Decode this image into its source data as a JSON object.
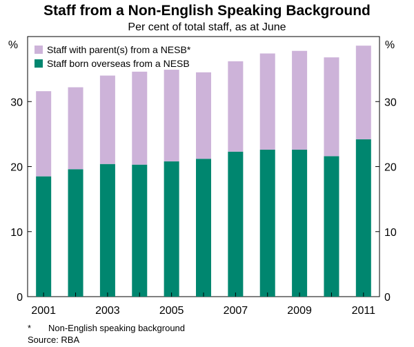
{
  "title": "Staff from a Non-English Speaking Background",
  "subtitle": "Per cent of total staff, as at June",
  "footnote_marker": "*",
  "footnote_text": "Non-English speaking background",
  "source": "Source: RBA",
  "colors": {
    "overseas": "#00866F",
    "parents": "#CDB3D9",
    "axis": "#000000"
  },
  "chart_data": {
    "type": "bar",
    "stacked": true,
    "categories": [
      "2001",
      "2002",
      "2003",
      "2004",
      "2005",
      "2006",
      "2007",
      "2008",
      "2009",
      "2010",
      "2011"
    ],
    "x_tick_labels": [
      "2001",
      "",
      "2003",
      "",
      "2005",
      "",
      "2007",
      "",
      "2009",
      "",
      "2011"
    ],
    "series": [
      {
        "name": "Staff born overseas from a NESB",
        "values": [
          18.5,
          19.6,
          20.4,
          20.3,
          20.8,
          21.2,
          22.3,
          22.6,
          22.6,
          21.6,
          24.2
        ]
      },
      {
        "name": "Staff with parent(s) from a NESB*",
        "values": [
          13.1,
          12.6,
          13.6,
          14.3,
          14.1,
          13.3,
          13.9,
          14.8,
          15.2,
          15.2,
          14.4
        ]
      }
    ],
    "legend_order": [
      "Staff with parent(s) from a NESB*",
      "Staff born overseas from a NESB"
    ],
    "ylim": [
      0,
      40
    ],
    "y_ticks": [
      "0",
      "10",
      "20",
      "30"
    ],
    "y_unit_left": "%",
    "y_unit_right": "%",
    "legend_position": "top-left",
    "grid": false
  }
}
